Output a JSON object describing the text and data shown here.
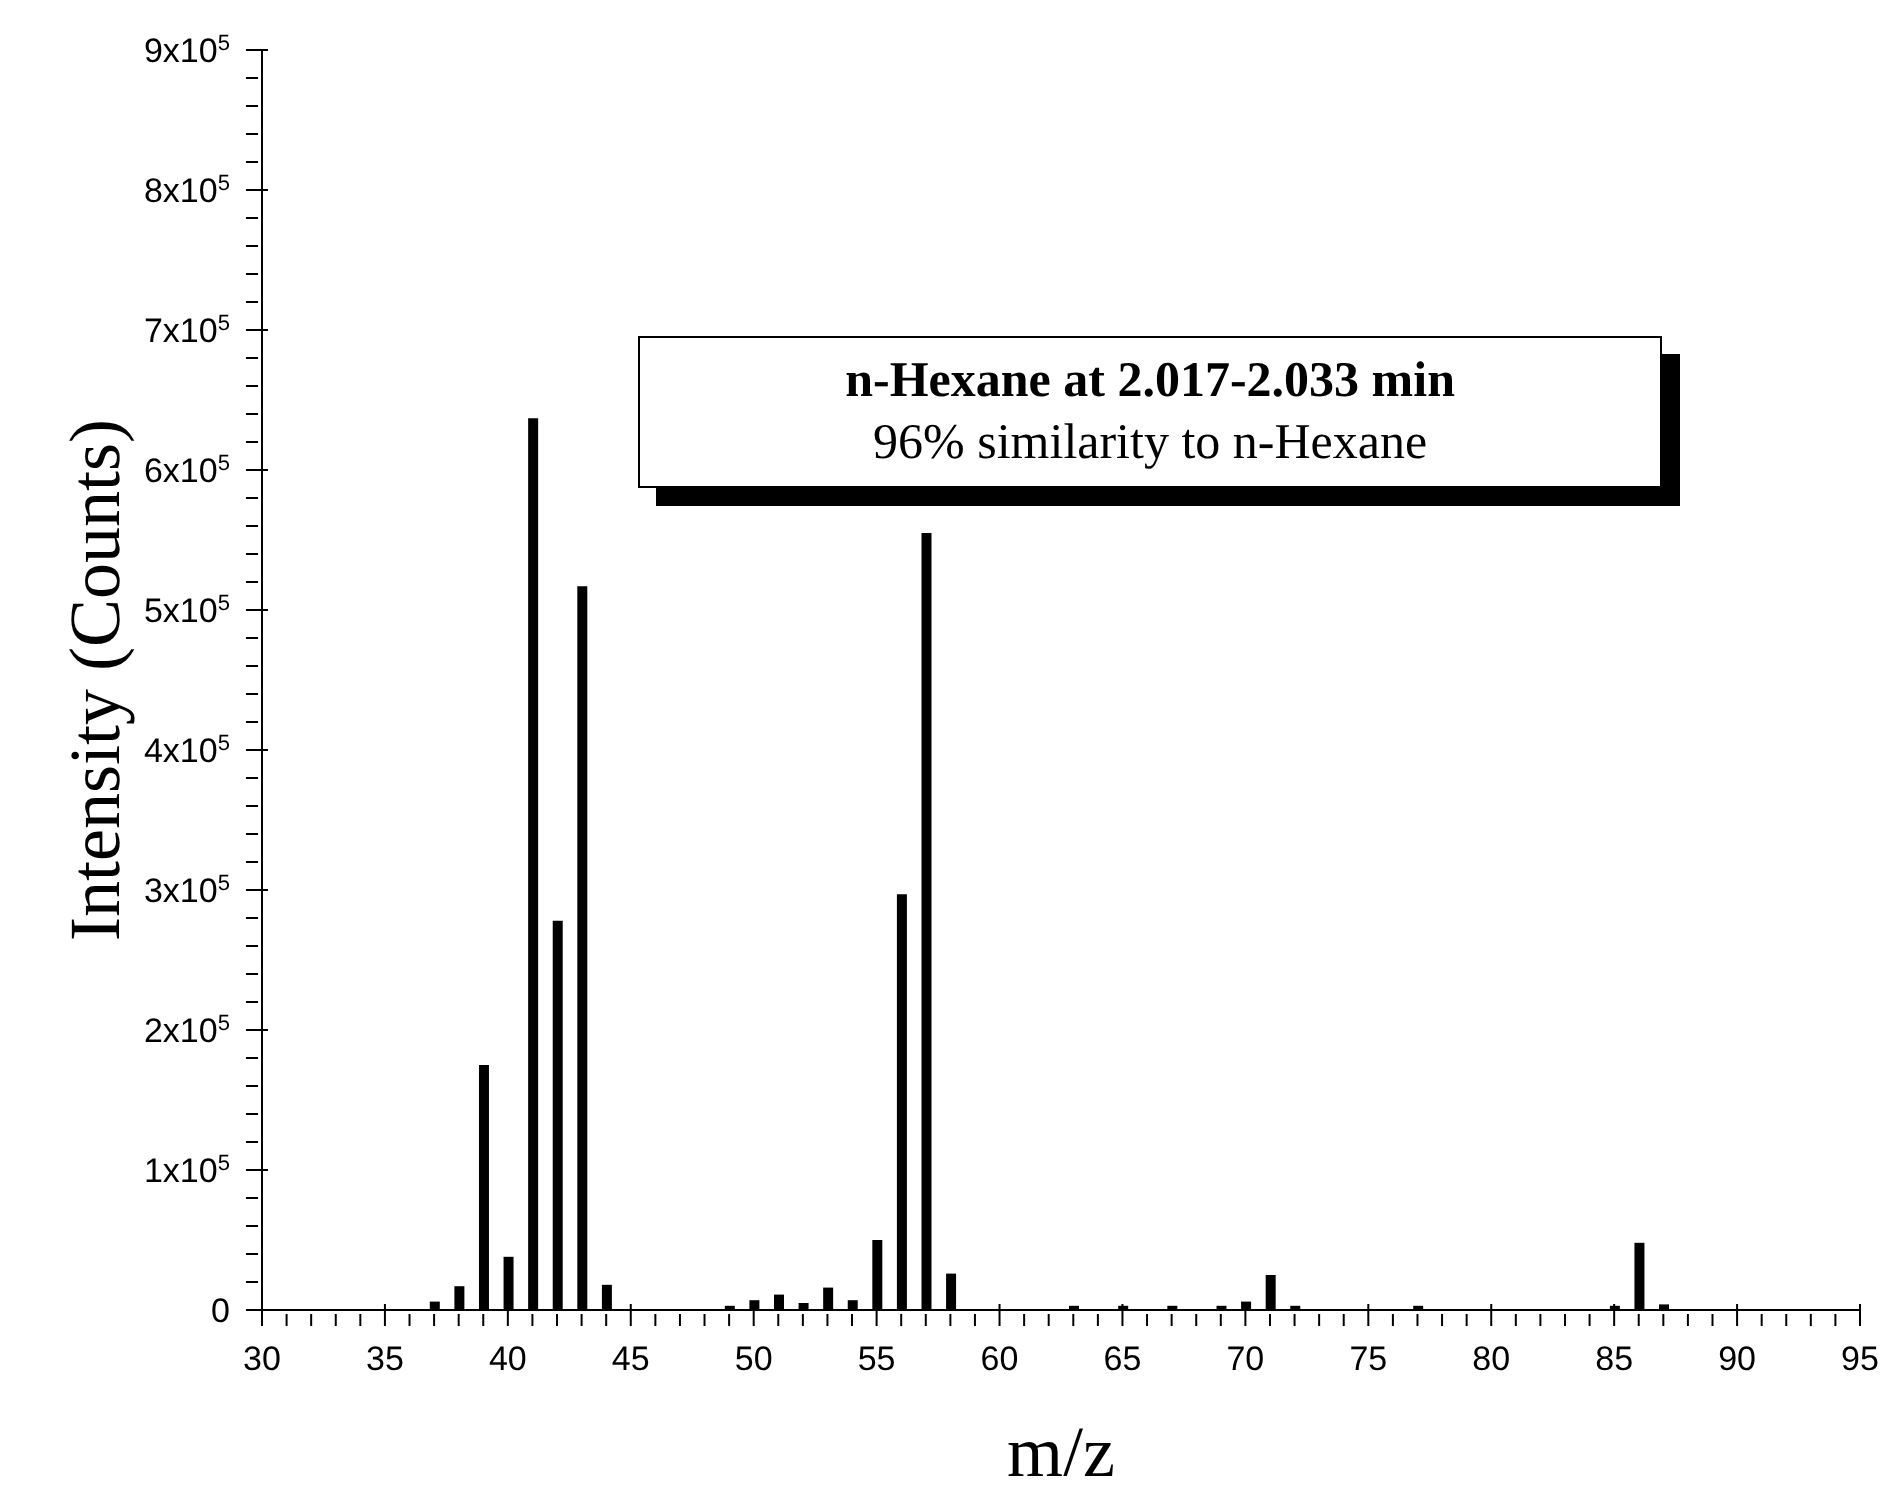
{
  "chart_data": {
    "type": "bar",
    "xlabel": "m/z",
    "ylabel": "Intensity (Counts)",
    "annotations": [
      "n-Hexane at 2.017-2.033 min",
      "96% similarity to n-Hexane"
    ],
    "x": [
      37,
      38,
      39,
      40,
      41,
      42,
      43,
      44,
      49,
      50,
      51,
      52,
      53,
      54,
      55,
      56,
      57,
      58,
      63,
      65,
      67,
      69,
      70,
      71,
      72,
      77,
      85,
      86,
      87
    ],
    "values": [
      6000,
      17000,
      175000,
      38000,
      637000,
      278000,
      517000,
      18000,
      3000,
      7000,
      11000,
      5000,
      16000,
      7000,
      50000,
      297000,
      555000,
      26000,
      3000,
      3000,
      3000,
      3000,
      6000,
      25000,
      3000,
      3000,
      3000,
      48000,
      4000
    ],
    "color": "#000000",
    "xlim": [
      30,
      95
    ],
    "xticks": [
      30,
      {
        "value": 31,
        "label": null
      },
      {
        "value": 32,
        "label": null
      },
      {
        "value": 33,
        "label": null
      },
      {
        "value": 34,
        "label": null
      },
      35,
      {
        "value": 36,
        "label": null
      },
      {
        "value": 37,
        "label": null
      },
      {
        "value": 38,
        "label": null
      },
      {
        "value": 39,
        "label": null
      },
      40,
      {
        "value": 41,
        "label": null
      },
      {
        "value": 42,
        "label": null
      },
      {
        "value": 43,
        "label": null
      },
      {
        "value": 44,
        "label": null
      },
      45,
      {
        "value": 46,
        "label": null
      },
      {
        "value": 47,
        "label": null
      },
      {
        "value": 48,
        "label": null
      },
      {
        "value": 49,
        "label": null
      },
      50,
      {
        "value": 51,
        "label": null
      },
      {
        "value": 52,
        "label": null
      },
      {
        "value": 53,
        "label": null
      },
      {
        "value": 54,
        "label": null
      },
      55,
      {
        "value": 56,
        "label": null
      },
      {
        "value": 57,
        "label": null
      },
      {
        "value": 58,
        "label": null
      },
      {
        "value": 59,
        "label": null
      },
      60,
      {
        "value": 61,
        "label": null
      },
      {
        "value": 62,
        "label": null
      },
      {
        "value": 63,
        "label": null
      },
      {
        "value": 64,
        "label": null
      },
      65,
      {
        "value": 66,
        "label": null
      },
      {
        "value": 67,
        "label": null
      },
      {
        "value": 68,
        "label": null
      },
      {
        "value": 69,
        "label": null
      },
      70,
      {
        "value": 71,
        "label": null
      },
      {
        "value": 72,
        "label": null
      },
      {
        "value": 73,
        "label": null
      },
      {
        "value": 74,
        "label": null
      },
      75,
      {
        "value": 76,
        "label": null
      },
      {
        "value": 77,
        "label": null
      },
      {
        "value": 78,
        "label": null
      },
      {
        "value": 79,
        "label": null
      },
      80,
      {
        "value": 81,
        "label": null
      },
      {
        "value": 82,
        "label": null
      },
      {
        "value": 83,
        "label": null
      },
      {
        "value": 84,
        "label": null
      },
      85,
      {
        "value": 86,
        "label": null
      },
      {
        "value": 87,
        "label": null
      },
      {
        "value": 88,
        "label": null
      },
      {
        "value": 89,
        "label": null
      },
      90,
      {
        "value": 91,
        "label": null
      },
      {
        "value": 92,
        "label": null
      },
      {
        "value": 93,
        "label": null
      },
      {
        "value": 94,
        "label": null
      },
      95
    ],
    "ylim": [
      0,
      900000
    ],
    "yticks": [
      0,
      {
        "value": 20000,
        "label": null
      },
      {
        "value": 40000,
        "label": null
      },
      {
        "value": 60000,
        "label": null
      },
      {
        "value": 80000,
        "label": null
      },
      {
        "value": 100000,
        "label": "1x10$^{5}$"
      },
      {
        "value": 120000,
        "label": null
      },
      {
        "value": 140000,
        "label": null
      },
      {
        "value": 160000,
        "label": null
      },
      {
        "value": 180000,
        "label": null
      },
      {
        "value": 200000,
        "label": "2x10$^{5}$"
      },
      {
        "value": 220000,
        "label": null
      },
      {
        "value": 240000,
        "label": null
      },
      {
        "value": 260000,
        "label": null
      },
      {
        "value": 280000,
        "label": null
      },
      {
        "value": 300000,
        "label": "3x10$^{5}$"
      },
      {
        "value": 320000,
        "label": null
      },
      {
        "value": 340000,
        "label": null
      },
      {
        "value": 360000,
        "label": null
      },
      {
        "value": 380000,
        "label": null
      },
      {
        "value": 400000,
        "label": "4x10$^{5}$"
      },
      {
        "value": 420000,
        "label": null
      },
      {
        "value": 440000,
        "label": null
      },
      {
        "value": 460000,
        "label": null
      },
      {
        "value": 480000,
        "label": null
      },
      {
        "value": 500000,
        "label": "5x10$^{5}$"
      },
      {
        "value": 520000,
        "label": null
      },
      {
        "value": 540000,
        "label": null
      },
      {
        "value": 560000,
        "label": null
      },
      {
        "value": 580000,
        "label": null
      },
      {
        "value": 600000,
        "label": "6x10$^{5}$"
      },
      {
        "value": 620000,
        "label": null
      },
      {
        "value": 640000,
        "label": null
      },
      {
        "value": 660000,
        "label": null
      },
      {
        "value": 680000,
        "label": null
      },
      {
        "value": 700000,
        "label": "7x10$^{5}$"
      },
      {
        "value": 720000,
        "label": null
      },
      {
        "value": 740000,
        "label": null
      },
      {
        "value": 760000,
        "label": null
      },
      {
        "value": 780000,
        "label": null
      },
      {
        "value": 800000,
        "label": "8x10$^{5}$"
      },
      {
        "value": 820000,
        "label": null
      },
      {
        "value": 840000,
        "label": null
      },
      {
        "value": 860000,
        "label": null
      },
      {
        "value": 880000,
        "label": null
      },
      {
        "value": 900000,
        "label": "9x10$^{5}$"
      }
    ],
    "grid": false,
    "legend": false
  }
}
